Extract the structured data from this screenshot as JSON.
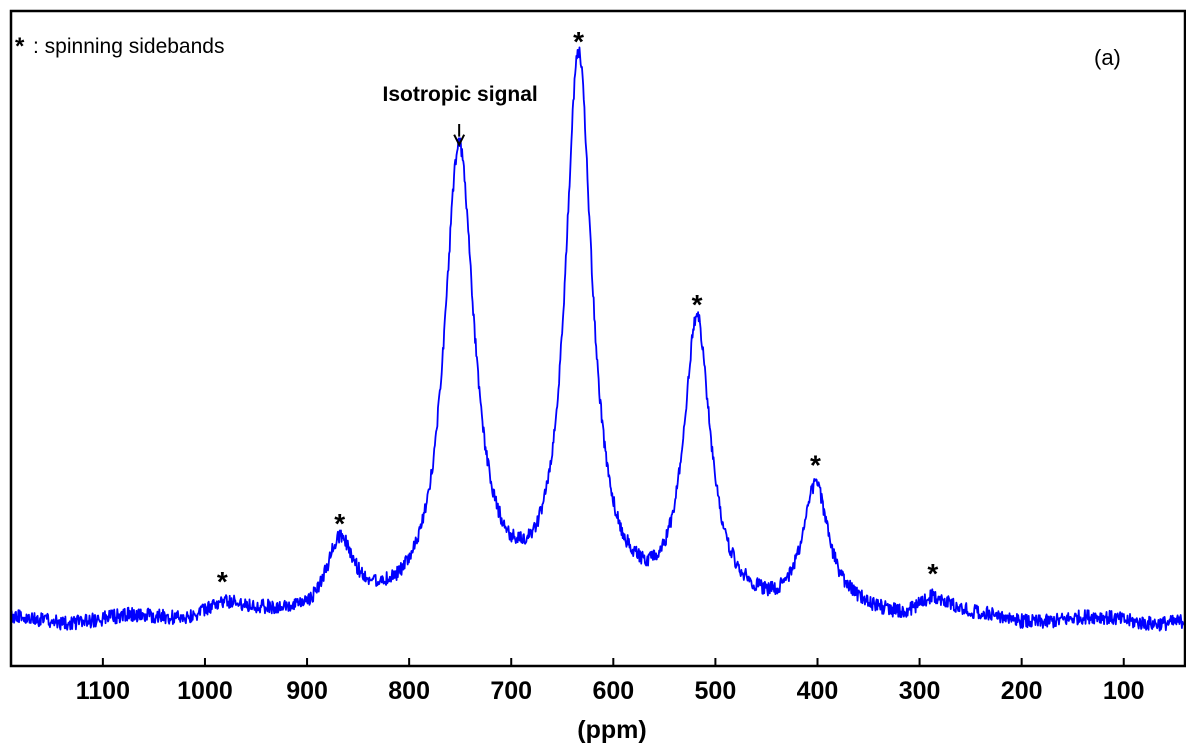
{
  "chart_data": {
    "type": "line",
    "title": "",
    "panel_label": "(a)",
    "xlabel": "(ppm)",
    "ylabel": "",
    "x_reversed": true,
    "xlim": [
      1190,
      40
    ],
    "ylim": [
      0,
      1.0
    ],
    "xticks": [
      1100,
      1000,
      900,
      800,
      700,
      600,
      500,
      400,
      300,
      200,
      100
    ],
    "xtick_labels": [
      "1100",
      "1000",
      "900",
      "800",
      "700",
      "600",
      "500",
      "400",
      "300",
      "200",
      "100"
    ],
    "grid": false,
    "legend": {
      "symbol": "*",
      "text": ": spinning sidebands",
      "placement": "top-left"
    },
    "series_color": "#0000ff",
    "peaks": [
      {
        "x": 983,
        "height": 0.025,
        "width": 25,
        "sideband": true
      },
      {
        "x": 868,
        "height": 0.13,
        "width": 16,
        "sideband": true
      },
      {
        "x": 751,
        "height": 0.84,
        "width": 18,
        "sideband": false
      },
      {
        "x": 634,
        "height": 1.0,
        "width": 16,
        "sideband": true
      },
      {
        "x": 518,
        "height": 0.525,
        "width": 16,
        "sideband": true
      },
      {
        "x": 402,
        "height": 0.235,
        "width": 16,
        "sideband": true
      },
      {
        "x": 287,
        "height": 0.04,
        "width": 18,
        "sideband": true
      }
    ],
    "sideband_marker": "*",
    "annotations": [
      {
        "text": "Isotropic signal",
        "x": 751,
        "arrow": true
      }
    ]
  }
}
